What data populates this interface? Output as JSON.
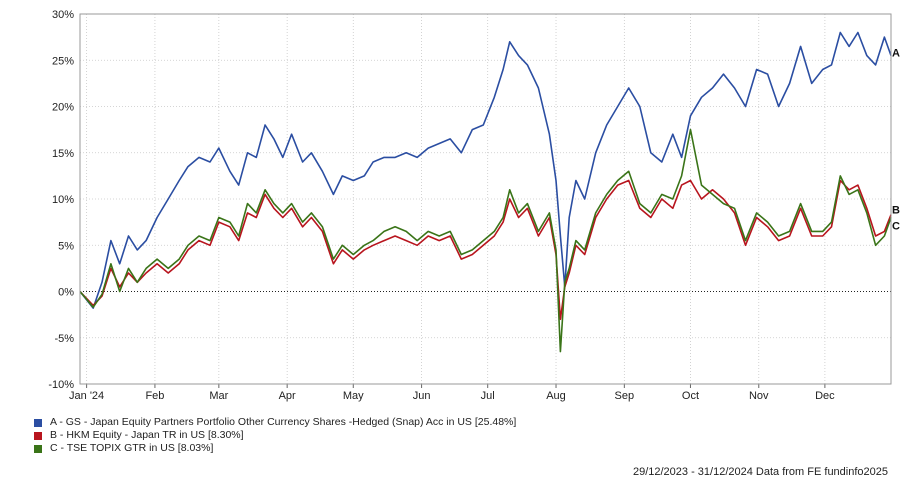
{
  "chart_data": {
    "type": "line",
    "ylim": [
      -10,
      30
    ],
    "y_ticks": [
      "30%",
      "25%",
      "20%",
      "15%",
      "10%",
      "5%",
      "0%",
      "-5%",
      "-10%"
    ],
    "y_tick_values": [
      30,
      25,
      20,
      15,
      10,
      5,
      0,
      -5,
      -10
    ],
    "x_ticks": [
      "Jan '24",
      "Feb",
      "Mar",
      "Apr",
      "May",
      "Jun",
      "Jul",
      "Aug",
      "Sep",
      "Oct",
      "Nov",
      "Dec"
    ],
    "x_tick_dates": [
      "2024-01-01",
      "2024-02-01",
      "2024-03-01",
      "2024-04-01",
      "2024-05-01",
      "2024-06-01",
      "2024-07-01",
      "2024-08-01",
      "2024-09-01",
      "2024-10-01",
      "2024-11-01",
      "2024-12-01"
    ],
    "x_start": "2023-12-29",
    "x_end": "2024-12-31",
    "grid": true,
    "zero_line": "dotted",
    "series": [
      {
        "name": "A - GS - Japan Equity Partners Portfolio Other Currency Shares -Hedged (Snap) Acc in US [25.48%]",
        "end_label": "A",
        "color": "#2b4ea2",
        "x": [
          "2023-12-29",
          "2024-01-04",
          "2024-01-08",
          "2024-01-12",
          "2024-01-16",
          "2024-01-20",
          "2024-01-24",
          "2024-01-28",
          "2024-02-02",
          "2024-02-07",
          "2024-02-12",
          "2024-02-16",
          "2024-02-21",
          "2024-02-26",
          "2024-03-01",
          "2024-03-06",
          "2024-03-10",
          "2024-03-14",
          "2024-03-18",
          "2024-03-22",
          "2024-03-26",
          "2024-03-30",
          "2024-04-03",
          "2024-04-08",
          "2024-04-12",
          "2024-04-17",
          "2024-04-22",
          "2024-04-26",
          "2024-05-01",
          "2024-05-06",
          "2024-05-10",
          "2024-05-15",
          "2024-05-20",
          "2024-05-25",
          "2024-05-30",
          "2024-06-04",
          "2024-06-09",
          "2024-06-14",
          "2024-06-19",
          "2024-06-24",
          "2024-06-29",
          "2024-07-04",
          "2024-07-08",
          "2024-07-11",
          "2024-07-15",
          "2024-07-19",
          "2024-07-24",
          "2024-07-29",
          "2024-08-01",
          "2024-08-03",
          "2024-08-05",
          "2024-08-07",
          "2024-08-10",
          "2024-08-14",
          "2024-08-19",
          "2024-08-24",
          "2024-08-29",
          "2024-09-03",
          "2024-09-08",
          "2024-09-13",
          "2024-09-18",
          "2024-09-23",
          "2024-09-27",
          "2024-10-01",
          "2024-10-06",
          "2024-10-11",
          "2024-10-16",
          "2024-10-21",
          "2024-10-26",
          "2024-10-31",
          "2024-11-05",
          "2024-11-10",
          "2024-11-15",
          "2024-11-20",
          "2024-11-25",
          "2024-11-30",
          "2024-12-04",
          "2024-12-08",
          "2024-12-12",
          "2024-12-16",
          "2024-12-20",
          "2024-12-24",
          "2024-12-28",
          "2024-12-31"
        ],
        "values": [
          0.0,
          -1.8,
          1.0,
          5.5,
          3.0,
          6.0,
          4.5,
          5.5,
          8.0,
          10.0,
          12.0,
          13.5,
          14.5,
          14.0,
          15.5,
          13.0,
          11.5,
          15.0,
          14.5,
          18.0,
          16.5,
          14.5,
          17.0,
          14.0,
          15.0,
          13.0,
          10.5,
          12.5,
          12.0,
          12.5,
          14.0,
          14.5,
          14.5,
          15.0,
          14.5,
          15.5,
          16.0,
          16.5,
          15.0,
          17.5,
          18.0,
          21.0,
          24.0,
          27.0,
          25.5,
          24.5,
          22.0,
          17.0,
          12.0,
          6.0,
          0.5,
          8.0,
          12.0,
          10.0,
          15.0,
          18.0,
          20.0,
          22.0,
          20.0,
          15.0,
          14.0,
          17.0,
          14.5,
          19.0,
          21.0,
          22.0,
          23.5,
          22.0,
          20.0,
          24.0,
          23.5,
          20.0,
          22.5,
          26.5,
          22.5,
          24.0,
          24.5,
          28.0,
          26.5,
          28.0,
          25.5,
          24.5,
          27.5,
          25.5
        ]
      },
      {
        "name": "B - HKM Equity - Japan TR in US [8.30%]",
        "end_label": "B",
        "color": "#b8151e",
        "x": [
          "2023-12-29",
          "2024-01-04",
          "2024-01-08",
          "2024-01-12",
          "2024-01-16",
          "2024-01-20",
          "2024-01-24",
          "2024-01-28",
          "2024-02-02",
          "2024-02-07",
          "2024-02-12",
          "2024-02-16",
          "2024-02-21",
          "2024-02-26",
          "2024-03-01",
          "2024-03-06",
          "2024-03-10",
          "2024-03-14",
          "2024-03-18",
          "2024-03-22",
          "2024-03-26",
          "2024-03-30",
          "2024-04-03",
          "2024-04-08",
          "2024-04-12",
          "2024-04-17",
          "2024-04-22",
          "2024-04-26",
          "2024-05-01",
          "2024-05-06",
          "2024-05-10",
          "2024-05-15",
          "2024-05-20",
          "2024-05-25",
          "2024-05-30",
          "2024-06-04",
          "2024-06-09",
          "2024-06-14",
          "2024-06-19",
          "2024-06-24",
          "2024-06-29",
          "2024-07-04",
          "2024-07-08",
          "2024-07-11",
          "2024-07-15",
          "2024-07-19",
          "2024-07-24",
          "2024-07-29",
          "2024-08-01",
          "2024-08-03",
          "2024-08-05",
          "2024-08-07",
          "2024-08-10",
          "2024-08-14",
          "2024-08-19",
          "2024-08-24",
          "2024-08-29",
          "2024-09-03",
          "2024-09-08",
          "2024-09-13",
          "2024-09-18",
          "2024-09-23",
          "2024-09-27",
          "2024-10-01",
          "2024-10-06",
          "2024-10-11",
          "2024-10-16",
          "2024-10-21",
          "2024-10-26",
          "2024-10-31",
          "2024-11-05",
          "2024-11-10",
          "2024-11-15",
          "2024-11-20",
          "2024-11-25",
          "2024-11-30",
          "2024-12-04",
          "2024-12-08",
          "2024-12-12",
          "2024-12-16",
          "2024-12-20",
          "2024-12-24",
          "2024-12-28",
          "2024-12-31"
        ],
        "values": [
          0.0,
          -1.5,
          -0.5,
          2.5,
          0.5,
          2.0,
          1.0,
          2.0,
          3.0,
          2.0,
          3.0,
          4.5,
          5.5,
          5.0,
          7.5,
          7.0,
          5.5,
          8.5,
          8.0,
          10.5,
          9.0,
          8.0,
          9.0,
          7.0,
          8.0,
          6.5,
          3.0,
          4.5,
          3.5,
          4.5,
          5.0,
          5.5,
          6.0,
          5.5,
          5.0,
          6.0,
          5.5,
          6.0,
          3.5,
          4.0,
          5.0,
          6.0,
          7.5,
          10.0,
          8.0,
          9.0,
          6.0,
          8.0,
          4.0,
          -3.0,
          0.5,
          2.0,
          5.0,
          4.0,
          8.0,
          10.0,
          11.5,
          12.0,
          9.0,
          8.0,
          10.0,
          9.0,
          11.5,
          12.0,
          10.0,
          11.0,
          10.0,
          8.5,
          5.0,
          8.0,
          7.0,
          5.5,
          6.0,
          9.0,
          6.0,
          6.0,
          7.0,
          12.0,
          11.0,
          11.5,
          9.0,
          6.0,
          6.5,
          8.3
        ]
      },
      {
        "name": "C - TSE TOPIX GTR in US [8.03%]",
        "end_label": "C",
        "color": "#3a7418",
        "x": [
          "2023-12-29",
          "2024-01-04",
          "2024-01-08",
          "2024-01-12",
          "2024-01-16",
          "2024-01-20",
          "2024-01-24",
          "2024-01-28",
          "2024-02-02",
          "2024-02-07",
          "2024-02-12",
          "2024-02-16",
          "2024-02-21",
          "2024-02-26",
          "2024-03-01",
          "2024-03-06",
          "2024-03-10",
          "2024-03-14",
          "2024-03-18",
          "2024-03-22",
          "2024-03-26",
          "2024-03-30",
          "2024-04-03",
          "2024-04-08",
          "2024-04-12",
          "2024-04-17",
          "2024-04-22",
          "2024-04-26",
          "2024-05-01",
          "2024-05-06",
          "2024-05-10",
          "2024-05-15",
          "2024-05-20",
          "2024-05-25",
          "2024-05-30",
          "2024-06-04",
          "2024-06-09",
          "2024-06-14",
          "2024-06-19",
          "2024-06-24",
          "2024-06-29",
          "2024-07-04",
          "2024-07-08",
          "2024-07-11",
          "2024-07-15",
          "2024-07-19",
          "2024-07-24",
          "2024-07-29",
          "2024-08-01",
          "2024-08-03",
          "2024-08-05",
          "2024-08-07",
          "2024-08-10",
          "2024-08-14",
          "2024-08-19",
          "2024-08-24",
          "2024-08-29",
          "2024-09-03",
          "2024-09-08",
          "2024-09-13",
          "2024-09-18",
          "2024-09-23",
          "2024-09-27",
          "2024-10-01",
          "2024-10-06",
          "2024-10-11",
          "2024-10-16",
          "2024-10-21",
          "2024-10-26",
          "2024-10-31",
          "2024-11-05",
          "2024-11-10",
          "2024-11-15",
          "2024-11-20",
          "2024-11-25",
          "2024-11-30",
          "2024-12-04",
          "2024-12-08",
          "2024-12-12",
          "2024-12-16",
          "2024-12-20",
          "2024-12-24",
          "2024-12-28",
          "2024-12-31"
        ],
        "values": [
          0.0,
          -1.7,
          -0.3,
          3.0,
          0.0,
          2.5,
          1.0,
          2.5,
          3.5,
          2.5,
          3.5,
          5.0,
          6.0,
          5.5,
          8.0,
          7.5,
          6.0,
          9.5,
          8.5,
          11.0,
          9.5,
          8.5,
          9.5,
          7.5,
          8.5,
          7.0,
          3.5,
          5.0,
          4.0,
          5.0,
          5.5,
          6.5,
          7.0,
          6.5,
          5.5,
          6.5,
          6.0,
          6.5,
          4.0,
          4.5,
          5.5,
          6.5,
          8.0,
          11.0,
          8.5,
          9.5,
          6.5,
          8.5,
          4.5,
          -6.5,
          1.0,
          2.5,
          5.5,
          4.5,
          8.5,
          10.5,
          12.0,
          13.0,
          9.5,
          8.5,
          10.5,
          10.0,
          12.5,
          17.5,
          11.5,
          10.5,
          9.5,
          9.0,
          5.5,
          8.5,
          7.5,
          6.0,
          6.5,
          9.5,
          6.5,
          6.5,
          7.5,
          12.5,
          10.5,
          11.0,
          8.5,
          5.0,
          6.0,
          8.0
        ]
      }
    ]
  },
  "footer": {
    "date_range": "29/12/2023 - 31/12/2024",
    "source": "Data from FE fundinfo2025"
  }
}
